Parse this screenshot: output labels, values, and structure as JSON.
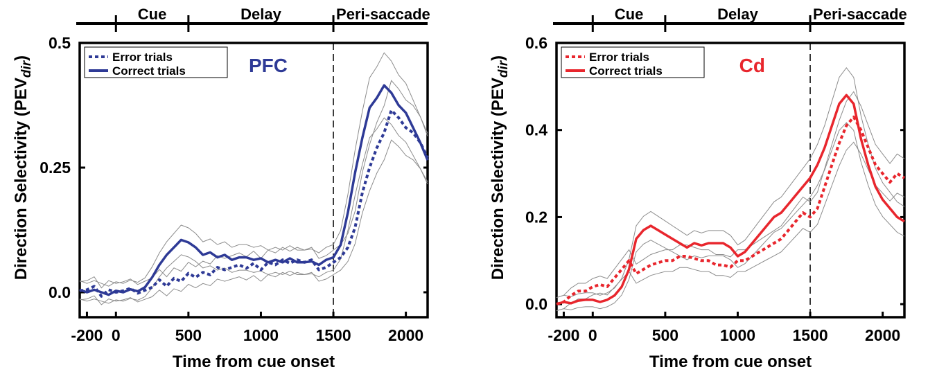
{
  "chart_data": [
    {
      "type": "line",
      "title": "",
      "region_label": "PFC",
      "xlabel": "Time from cue onset",
      "ylabel_main": "Direction Selectivity (PEV",
      "ylabel_sub": "dir",
      "ylabel_close": ")",
      "xlim": [
        -250,
        2150
      ],
      "ylim": [
        -0.05,
        0.5
      ],
      "xticks": [
        -200,
        0,
        500,
        1000,
        1500,
        2000
      ],
      "xtick_labels": [
        "-200",
        "0",
        "500",
        "1000",
        "1500",
        "2000"
      ],
      "yticks": [
        0.0,
        0.25,
        0.5
      ],
      "ytick_labels": [
        "0.0",
        "0.25",
        "0.5"
      ],
      "epochs": [
        {
          "label": "Cue",
          "start": 0,
          "end": 500
        },
        {
          "label": "Delay",
          "start": 500,
          "end": 1500
        },
        {
          "label": "Peri-saccade",
          "start": 1500,
          "end": 2150
        }
      ],
      "epoch_boundaries": [
        0,
        500,
        1500
      ],
      "vline": 1500,
      "legend_position": "top-left",
      "color": "#2e3a96",
      "series": [
        {
          "name": "Error trials",
          "style": "dotted",
          "x": [
            -250,
            -200,
            -150,
            -100,
            -50,
            0,
            50,
            100,
            150,
            200,
            250,
            300,
            350,
            400,
            450,
            500,
            550,
            600,
            650,
            700,
            750,
            800,
            850,
            900,
            950,
            1000,
            1050,
            1100,
            1150,
            1200,
            1250,
            1300,
            1350,
            1400,
            1450,
            1500,
            1550,
            1600,
            1650,
            1700,
            1750,
            1800,
            1850,
            1900,
            1950,
            2000,
            2050,
            2100,
            2150
          ],
          "y": [
            0.003,
            0.005,
            0.012,
            -0.008,
            0.005,
            0.0,
            0.003,
            0.008,
            -0.002,
            0.004,
            0.01,
            0.025,
            0.012,
            0.028,
            0.022,
            0.038,
            0.03,
            0.04,
            0.035,
            0.05,
            0.045,
            0.05,
            0.055,
            0.048,
            0.058,
            0.045,
            0.06,
            0.055,
            0.065,
            0.058,
            0.065,
            0.06,
            0.065,
            0.045,
            0.05,
            0.06,
            0.07,
            0.09,
            0.13,
            0.2,
            0.25,
            0.29,
            0.32,
            0.365,
            0.35,
            0.33,
            0.32,
            0.3,
            0.27
          ]
        },
        {
          "name": "Correct trials",
          "style": "solid",
          "x": [
            -250,
            -200,
            -150,
            -100,
            -50,
            0,
            50,
            100,
            150,
            200,
            250,
            300,
            350,
            400,
            450,
            500,
            550,
            600,
            650,
            700,
            750,
            800,
            850,
            900,
            950,
            1000,
            1050,
            1100,
            1150,
            1200,
            1250,
            1300,
            1350,
            1400,
            1450,
            1500,
            1550,
            1600,
            1650,
            1700,
            1750,
            1800,
            1850,
            1900,
            1950,
            2000,
            2050,
            2100,
            2150
          ],
          "y": [
            0.005,
            0.0,
            0.005,
            0.0,
            -0.005,
            0.003,
            0.0,
            0.006,
            0.002,
            0.01,
            0.03,
            0.055,
            0.075,
            0.09,
            0.105,
            0.1,
            0.09,
            0.075,
            0.08,
            0.07,
            0.075,
            0.065,
            0.07,
            0.07,
            0.065,
            0.068,
            0.06,
            0.065,
            0.06,
            0.068,
            0.06,
            0.06,
            0.062,
            0.055,
            0.065,
            0.07,
            0.095,
            0.16,
            0.24,
            0.31,
            0.37,
            0.39,
            0.415,
            0.4,
            0.375,
            0.36,
            0.33,
            0.3,
            0.265
          ]
        }
      ]
    },
    {
      "type": "line",
      "title": "",
      "region_label": "Cd",
      "xlabel": "Time from cue onset",
      "ylabel_main": "Direction Selectivity (PEV",
      "ylabel_sub": "dir",
      "ylabel_close": ")",
      "xlim": [
        -250,
        2150
      ],
      "ylim": [
        -0.03,
        0.6
      ],
      "xticks": [
        -200,
        0,
        500,
        1000,
        1500,
        2000
      ],
      "xtick_labels": [
        "-200",
        "0",
        "500",
        "1000",
        "1500",
        "2000"
      ],
      "yticks": [
        0.0,
        0.2,
        0.4,
        0.6
      ],
      "ytick_labels": [
        "0.0",
        "0.2",
        "0.4",
        "0.6"
      ],
      "epochs": [
        {
          "label": "Cue",
          "start": 0,
          "end": 500
        },
        {
          "label": "Delay",
          "start": 500,
          "end": 1500
        },
        {
          "label": "Peri-saccade",
          "start": 1500,
          "end": 2150
        }
      ],
      "epoch_boundaries": [
        0,
        500,
        1500
      ],
      "vline": 1500,
      "legend_position": "top-left",
      "color": "#e8262d",
      "series": [
        {
          "name": "Error trials",
          "style": "dotted",
          "x": [
            -250,
            -200,
            -150,
            -100,
            -50,
            0,
            50,
            100,
            150,
            200,
            250,
            300,
            350,
            400,
            450,
            500,
            550,
            600,
            650,
            700,
            750,
            800,
            850,
            900,
            950,
            1000,
            1050,
            1100,
            1150,
            1200,
            1250,
            1300,
            1350,
            1400,
            1450,
            1500,
            1550,
            1600,
            1650,
            1700,
            1750,
            1800,
            1850,
            1900,
            1950,
            2000,
            2050,
            2100,
            2150
          ],
          "y": [
            0.0,
            0.005,
            0.02,
            0.03,
            0.03,
            0.04,
            0.045,
            0.04,
            0.06,
            0.08,
            0.1,
            0.07,
            0.08,
            0.09,
            0.095,
            0.1,
            0.1,
            0.11,
            0.11,
            0.105,
            0.1,
            0.1,
            0.09,
            0.09,
            0.085,
            0.1,
            0.1,
            0.11,
            0.12,
            0.13,
            0.14,
            0.15,
            0.17,
            0.19,
            0.21,
            0.2,
            0.22,
            0.27,
            0.32,
            0.37,
            0.41,
            0.43,
            0.4,
            0.36,
            0.32,
            0.3,
            0.28,
            0.3,
            0.29
          ]
        },
        {
          "name": "Correct trials",
          "style": "solid",
          "x": [
            -250,
            -200,
            -150,
            -100,
            -50,
            0,
            50,
            100,
            150,
            200,
            250,
            300,
            350,
            400,
            450,
            500,
            550,
            600,
            650,
            700,
            750,
            800,
            850,
            900,
            950,
            1000,
            1050,
            1100,
            1150,
            1200,
            1250,
            1300,
            1350,
            1400,
            1450,
            1500,
            1550,
            1600,
            1650,
            1700,
            1750,
            1800,
            1850,
            1900,
            1950,
            2000,
            2050,
            2100,
            2150
          ],
          "y": [
            0.0,
            0.005,
            0.002,
            0.008,
            0.01,
            0.01,
            0.005,
            0.01,
            0.02,
            0.04,
            0.08,
            0.15,
            0.17,
            0.18,
            0.17,
            0.16,
            0.15,
            0.14,
            0.13,
            0.14,
            0.135,
            0.14,
            0.14,
            0.14,
            0.13,
            0.11,
            0.12,
            0.14,
            0.16,
            0.18,
            0.2,
            0.21,
            0.23,
            0.25,
            0.27,
            0.29,
            0.32,
            0.36,
            0.41,
            0.46,
            0.48,
            0.46,
            0.38,
            0.32,
            0.27,
            0.24,
            0.22,
            0.2,
            0.19
          ]
        }
      ]
    }
  ]
}
